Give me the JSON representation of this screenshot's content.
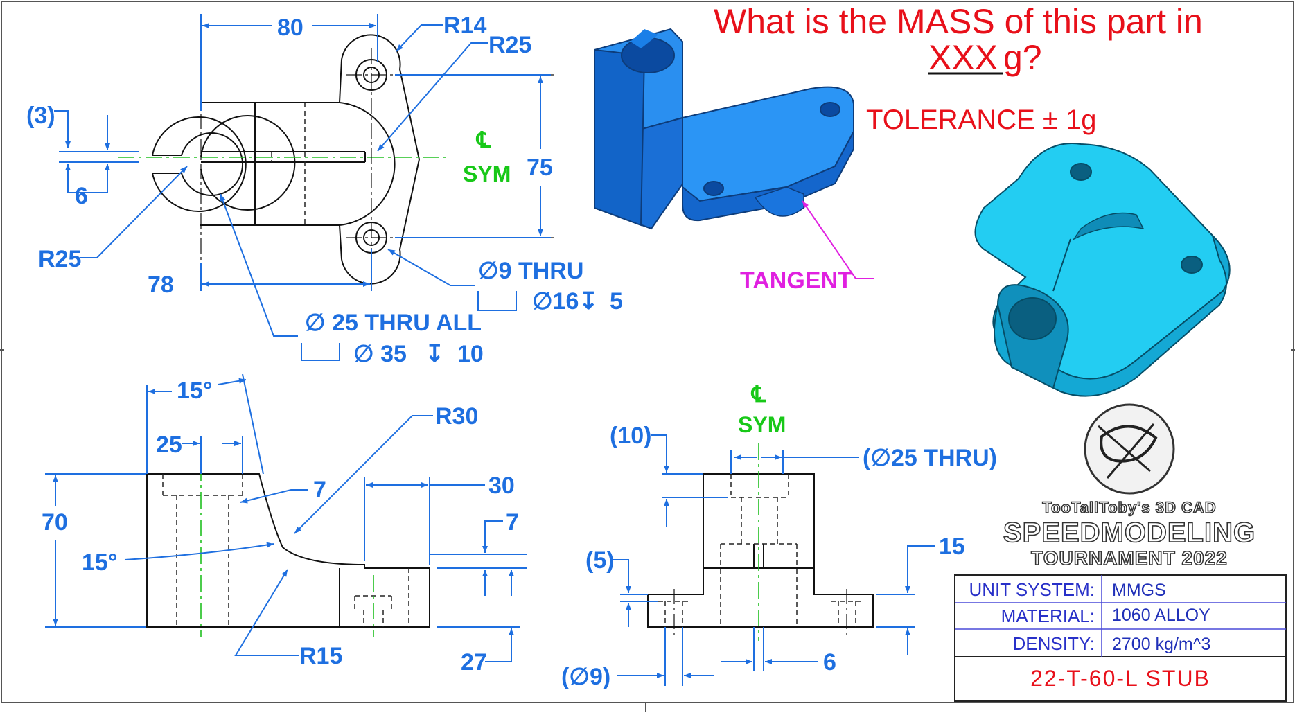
{
  "question": {
    "line1": "What is the MASS of this part in",
    "line2_underlined": "XXX",
    "line2_rest": " g?"
  },
  "tolerance": "TOLERANCE ± 1g",
  "tangent_label": "TANGENT",
  "top_view": {
    "dim_80": "80",
    "dim_r14": "R14",
    "dim_r25_top": "R25",
    "dim_3": "(3)",
    "dim_6": "6",
    "dim_75": "75",
    "cl_symbol": "℄",
    "cl_sym": "SYM",
    "dim_r25_left": "R25",
    "dim_78": "78",
    "callout_9_line1": "∅9 THRU",
    "callout_9_line2": "∅16",
    "callout_9_depth": "5",
    "callout_25_line1": "∅ 25 THRU ALL",
    "callout_25_line2": "∅ 35",
    "callout_25_depth": "10"
  },
  "front_view": {
    "dim_15deg_top": "15°",
    "dim_25": "25",
    "dim_r30": "R30",
    "dim_30": "30",
    "dim_7a": "7",
    "dim_7b": "7",
    "dim_70": "70",
    "dim_15deg_left": "15°",
    "dim_r15": "R15",
    "dim_27": "27"
  },
  "side_view": {
    "cl_symbol": "℄",
    "cl_sym": "SYM",
    "dim_10": "(10)",
    "dim_25_thru": "(∅25 THRU)",
    "dim_5": "(5)",
    "dim_15": "15",
    "dim_9": "(∅9)",
    "dim_6": "6"
  },
  "branding": {
    "line1": "TooTallToby's 3D CAD",
    "line2": "SPEEDMODELING",
    "line3": "TOURNAMENT 2022"
  },
  "title_block": {
    "rows": [
      {
        "label": "UNIT SYSTEM:",
        "value": "MMGS"
      },
      {
        "label": "MATERIAL:",
        "value": "1060 ALLOY"
      },
      {
        "label": "DENSITY:",
        "value": "2700 kg/m^3"
      }
    ],
    "part_number": "22-T-60-L STUB"
  },
  "colors": {
    "dimension": "#1e6fe0",
    "centerline": "#18c818",
    "question": "#e8101a",
    "tangent": "#e020e0",
    "model_dark": "#1a7fe8",
    "model_light": "#20c8f0"
  }
}
